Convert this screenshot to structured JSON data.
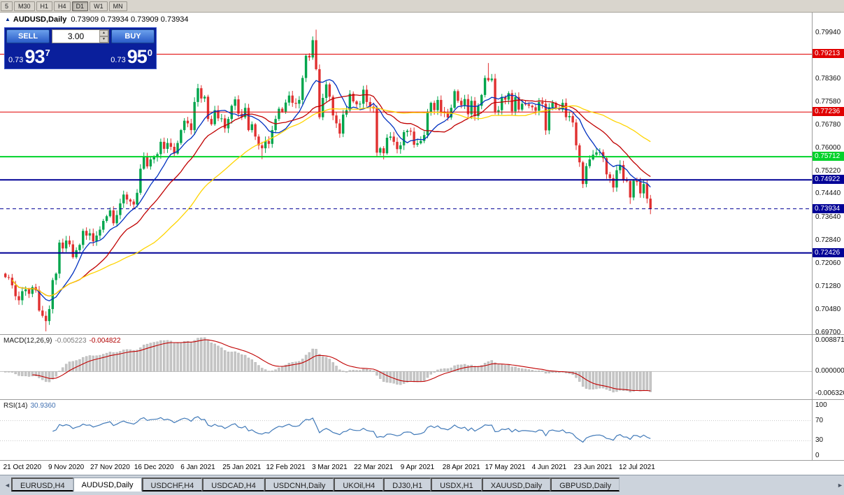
{
  "toolbar": {
    "timeframes": [
      "5",
      "M30",
      "H1",
      "H4",
      "D1",
      "W1",
      "MN"
    ],
    "active": "D1"
  },
  "ohlc": {
    "collapse_icon": "▲",
    "symbol": "AUDUSD,Daily",
    "values": "0.73909 0.73934 0.73909 0.73934"
  },
  "trade_panel": {
    "sell_label": "SELL",
    "buy_label": "BUY",
    "volume": "3.00",
    "spin_up_icon": "▲",
    "spin_down_icon": "▼",
    "sell_price": {
      "base": "0.73",
      "big": "93",
      "sup": "7"
    },
    "buy_price": {
      "base": "0.73",
      "big": "95",
      "sup": "0"
    }
  },
  "price_axis": {
    "labels": [
      "0.79940",
      "0.79210",
      "0.78360",
      "0.77580",
      "0.76780",
      "0.76000",
      "0.75220",
      "0.74440",
      "0.73640",
      "0.72840",
      "0.72060",
      "0.71280",
      "0.70480",
      "0.69700"
    ]
  },
  "levels": [
    {
      "price": 0.79213,
      "label": "0.79213",
      "color": "#e00000",
      "thickness": 1
    },
    {
      "price": 0.77236,
      "label": "0.77236",
      "color": "#e00000",
      "thickness": 1
    },
    {
      "price": 0.75712,
      "label": "0.75712",
      "color": "#00d22a",
      "thickness": 2
    },
    {
      "price": 0.74922,
      "label": "0.74922",
      "color": "#000096",
      "thickness": 2
    },
    {
      "price": 0.72426,
      "label": "0.72426",
      "color": "#000096",
      "thickness": 2
    }
  ],
  "current_price": {
    "price": 0.73934,
    "label": "0.73934",
    "color": "#000096"
  },
  "indicators": {
    "macd": {
      "title": "MACD(12,26,9)",
      "main_value": "-0.005223",
      "signal_value": "-0.004822",
      "axis_labels": [
        "0.008871",
        "0.000000",
        "-0.006320"
      ],
      "histogram_color": "#c6c6c6",
      "histogram_stroke": "#a8a8a8",
      "signal_color": "#c00000"
    },
    "rsi": {
      "title": "RSI(14)",
      "value": "30.9360",
      "axis_labels": [
        "100",
        "70",
        "30",
        "0"
      ],
      "line_color": "#4079b8",
      "level_lines": [
        70,
        30
      ]
    }
  },
  "date_axis": {
    "labels": [
      "21 Oct 2020",
      "9 Nov 2020",
      "27 Nov 2020",
      "16 Dec 2020",
      "6 Jan 2021",
      "25 Jan 2021",
      "12 Feb 2021",
      "3 Mar 2021",
      "22 Mar 2021",
      "9 Apr 2021",
      "28 Apr 2021",
      "17 May 2021",
      "4 Jun 2021",
      "23 Jun 2021",
      "12 Jul 2021"
    ]
  },
  "tabs": {
    "scroll_left": "◄",
    "scroll_right": "►",
    "active_index": 1,
    "items": [
      "EURUSD,H4",
      "AUDUSD,Daily",
      "USDCHF,H4",
      "USDCAD,H4",
      "USDCNH,Daily",
      "UKOil,H4",
      "DJ30,H1",
      "USDX,H1",
      "XAUUSD,Daily",
      "GBPUSD,Daily"
    ]
  },
  "chart_data": {
    "type": "candlestick",
    "symbol": "AUDUSD",
    "timeframe": "Daily",
    "up_color": "#00a54c",
    "down_color": "#e03030",
    "open_first": 0.7172,
    "default_wick": 0.0014,
    "bars_per_label": 13,
    "first_label_bar": 5,
    "ma": [
      {
        "period": 10,
        "color": "#0030c0"
      },
      {
        "period": 21,
        "color": "#c00000"
      },
      {
        "period": 45,
        "color": "#ffd400"
      }
    ],
    "closes": [
      0.716,
      0.7158,
      0.7132,
      0.7095,
      0.7081,
      0.7112,
      0.7118,
      0.7103,
      0.7126,
      0.7115,
      0.7046,
      0.7028,
      0.701,
      0.7051,
      0.715,
      0.7172,
      0.7278,
      0.7258,
      0.7285,
      0.7272,
      0.7228,
      0.7252,
      0.727,
      0.7318,
      0.7302,
      0.731,
      0.7282,
      0.7302,
      0.7322,
      0.7352,
      0.7368,
      0.7388,
      0.7344,
      0.7372,
      0.7412,
      0.7442,
      0.7425,
      0.7418,
      0.7408,
      0.7448,
      0.753,
      0.757,
      0.7538,
      0.7562,
      0.757,
      0.758,
      0.7622,
      0.7598,
      0.7618,
      0.7605,
      0.7582,
      0.7618,
      0.7662,
      0.7694,
      0.7685,
      0.7662,
      0.7758,
      0.7805,
      0.777,
      0.7776,
      0.77,
      0.7682,
      0.773,
      0.7702,
      0.7702,
      0.7668,
      0.77,
      0.7745,
      0.7767,
      0.7718,
      0.7706,
      0.7738,
      0.7662,
      0.7682,
      0.764,
      0.761,
      0.76,
      0.7625,
      0.7615,
      0.7662,
      0.77,
      0.7735,
      0.7725,
      0.7756,
      0.778,
      0.7755,
      0.7752,
      0.7765,
      0.784,
      0.7916,
      0.791,
      0.7969,
      0.787,
      0.7706,
      0.7772,
      0.7818,
      0.7776,
      0.7712,
      0.7685,
      0.765,
      0.7715,
      0.773,
      0.7786,
      0.776,
      0.775,
      0.7752,
      0.78,
      0.7758,
      0.7742,
      0.7736,
      0.7585,
      0.76,
      0.7583,
      0.7636,
      0.764,
      0.7622,
      0.7597,
      0.761,
      0.7655,
      0.766,
      0.7657,
      0.7612,
      0.7617,
      0.7625,
      0.7645,
      0.7725,
      0.7755,
      0.773,
      0.7765,
      0.7725,
      0.772,
      0.7705,
      0.7738,
      0.7795,
      0.7762,
      0.7747,
      0.7768,
      0.7716,
      0.7762,
      0.771,
      0.7745,
      0.7782,
      0.784,
      0.7832,
      0.7838,
      0.7725,
      0.773,
      0.7775,
      0.7766,
      0.7788,
      0.7726,
      0.7775,
      0.7732,
      0.7752,
      0.775,
      0.7745,
      0.774,
      0.7728,
      0.7758,
      0.7752,
      0.7661,
      0.774,
      0.7755,
      0.7738,
      0.7732,
      0.7755,
      0.7706,
      0.771,
      0.7688,
      0.761,
      0.7552,
      0.7478,
      0.7539,
      0.7562,
      0.7578,
      0.7586,
      0.7587,
      0.7566,
      0.7511,
      0.7498,
      0.7466,
      0.7525,
      0.7543,
      0.749,
      0.7488,
      0.7432,
      0.7489,
      0.7485,
      0.7446,
      0.7478,
      0.7428,
      0.7393
    ],
    "extremes": {
      "12": {
        "l": 0.6975
      },
      "57": {
        "h": 0.782
      },
      "76": {
        "l": 0.7563
      },
      "92": {
        "h": 0.8005
      },
      "112": {
        "l": 0.7562
      },
      "143": {
        "h": 0.7891
      },
      "185": {
        "l": 0.741
      },
      "191": {
        "l": 0.7375
      }
    }
  }
}
